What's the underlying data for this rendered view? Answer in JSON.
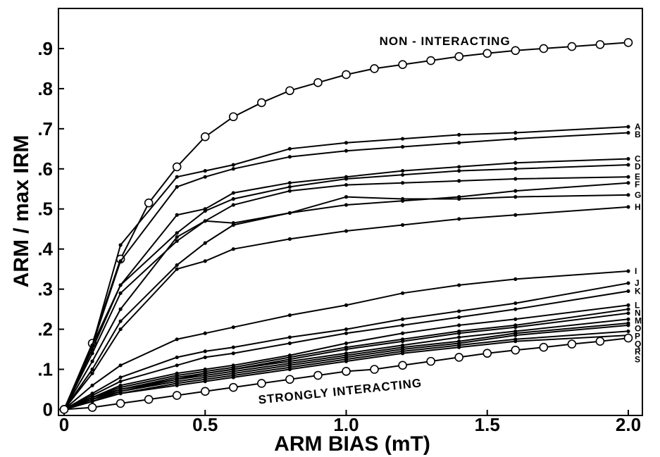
{
  "chart_data": {
    "type": "line",
    "xlabel": "ARM  BIAS (mT)",
    "ylabel": "ARM / max IRM",
    "xlim": [
      -0.02,
      2.05
    ],
    "ylim": [
      -0.015,
      1.0
    ],
    "xticks": [
      0,
      0.5,
      {
        "value": 1.0,
        "label": "1.0"
      },
      1.5,
      {
        "value": 2.0,
        "label": "2.0"
      }
    ],
    "yticks": [
      0,
      {
        "value": 0.1,
        "label": ".1"
      },
      {
        "value": 0.2,
        "label": ".2"
      },
      {
        "value": 0.3,
        "label": ".3"
      },
      {
        "value": 0.4,
        "label": ".4"
      },
      {
        "value": 0.5,
        "label": ".5"
      },
      {
        "value": 0.6,
        "label": ".6"
      },
      {
        "value": 0.7,
        "label": ".7"
      },
      {
        "value": 0.8,
        "label": ".8"
      },
      {
        "value": 0.9,
        "label": ".9"
      }
    ],
    "grid": false,
    "x": [
      0,
      0.1,
      0.2,
      0.4,
      0.5,
      0.6,
      0.8,
      1.0,
      1.2,
      1.4,
      1.6,
      2.0
    ],
    "series": [
      {
        "name": "NON - INTERACTING",
        "color": "#000000",
        "marker": "open-circle",
        "x": [
          0,
          0.1,
          0.2,
          0.3,
          0.4,
          0.5,
          0.6,
          0.7,
          0.8,
          0.9,
          1.0,
          1.1,
          1.2,
          1.3,
          1.4,
          1.5,
          1.6,
          1.7,
          1.8,
          1.9,
          2.0
        ],
        "values": [
          0,
          0.165,
          0.375,
          0.515,
          0.605,
          0.68,
          0.73,
          0.765,
          0.795,
          0.815,
          0.835,
          0.85,
          0.86,
          0.87,
          0.88,
          0.888,
          0.895,
          0.9,
          0.905,
          0.91,
          0.915
        ]
      },
      {
        "name": "A",
        "color": "#000000",
        "marker": "dot",
        "values": [
          0,
          0.16,
          0.41,
          0.58,
          0.595,
          0.61,
          0.65,
          0.665,
          0.675,
          0.685,
          0.69,
          0.705
        ]
      },
      {
        "name": "B",
        "color": "#000000",
        "marker": "dot",
        "values": [
          0,
          0.16,
          0.37,
          0.555,
          0.58,
          0.6,
          0.63,
          0.645,
          0.655,
          0.665,
          0.675,
          0.69
        ]
      },
      {
        "name": "C",
        "color": "#000000",
        "marker": "dot",
        "values": [
          0,
          0.16,
          0.31,
          0.485,
          0.5,
          0.54,
          0.565,
          0.58,
          0.595,
          0.605,
          0.615,
          0.625
        ]
      },
      {
        "name": "D",
        "color": "#000000",
        "marker": "dot",
        "values": [
          0,
          0.15,
          0.31,
          0.44,
          0.495,
          0.525,
          0.555,
          0.575,
          0.585,
          0.595,
          0.6,
          0.61
        ]
      },
      {
        "name": "E",
        "color": "#000000",
        "marker": "dot",
        "values": [
          0,
          0.14,
          0.29,
          0.42,
          0.47,
          0.51,
          0.545,
          0.56,
          0.565,
          0.57,
          0.575,
          0.58
        ]
      },
      {
        "name": "F",
        "color": "#000000",
        "marker": "dot",
        "values": [
          0,
          0.12,
          0.25,
          0.43,
          0.47,
          0.465,
          0.49,
          0.51,
          0.52,
          0.53,
          0.545,
          0.565
        ]
      },
      {
        "name": "G",
        "color": "#000000",
        "marker": "dot",
        "values": [
          0,
          0.1,
          0.22,
          0.36,
          0.415,
          0.46,
          0.49,
          0.53,
          0.525,
          0.525,
          0.53,
          0.535
        ]
      },
      {
        "name": "H",
        "color": "#000000",
        "marker": "dot",
        "values": [
          0,
          0.09,
          0.2,
          0.35,
          0.37,
          0.4,
          0.425,
          0.445,
          0.46,
          0.475,
          0.485,
          0.505
        ]
      },
      {
        "name": "I",
        "color": "#000000",
        "marker": "dot",
        "values": [
          0,
          0.06,
          0.11,
          0.175,
          0.19,
          0.205,
          0.235,
          0.26,
          0.29,
          0.31,
          0.325,
          0.345
        ]
      },
      {
        "name": "J",
        "color": "#000000",
        "marker": "dot",
        "values": [
          0,
          0.04,
          0.08,
          0.13,
          0.145,
          0.155,
          0.18,
          0.2,
          0.225,
          0.245,
          0.265,
          0.315
        ]
      },
      {
        "name": "K",
        "color": "#000000",
        "marker": "dot",
        "values": [
          0,
          0.035,
          0.07,
          0.11,
          0.13,
          0.14,
          0.165,
          0.19,
          0.21,
          0.23,
          0.25,
          0.295
        ]
      },
      {
        "name": "L",
        "color": "#000000",
        "marker": "dot",
        "values": [
          0,
          0.03,
          0.06,
          0.09,
          0.1,
          0.11,
          0.135,
          0.165,
          0.19,
          0.21,
          0.225,
          0.26
        ]
      },
      {
        "name": "N",
        "color": "#000000",
        "marker": "dot",
        "values": [
          0,
          0.03,
          0.055,
          0.085,
          0.095,
          0.105,
          0.13,
          0.155,
          0.175,
          0.195,
          0.21,
          0.25
        ]
      },
      {
        "name": "M",
        "color": "#000000",
        "marker": "dot",
        "values": [
          0,
          0.03,
          0.05,
          0.08,
          0.09,
          0.1,
          0.125,
          0.15,
          0.17,
          0.19,
          0.205,
          0.24
        ]
      },
      {
        "name": "O",
        "color": "#000000",
        "marker": "dot",
        "values": [
          0,
          0.025,
          0.05,
          0.075,
          0.09,
          0.1,
          0.12,
          0.14,
          0.16,
          0.18,
          0.195,
          0.225
        ]
      },
      {
        "name": "P",
        "color": "#000000",
        "marker": "dot",
        "values": [
          0,
          0.025,
          0.045,
          0.075,
          0.085,
          0.095,
          0.115,
          0.135,
          0.155,
          0.17,
          0.19,
          0.215
        ]
      },
      {
        "name": "Q",
        "color": "#000000",
        "marker": "dot",
        "values": [
          0,
          0.02,
          0.045,
          0.07,
          0.08,
          0.09,
          0.11,
          0.13,
          0.15,
          0.165,
          0.185,
          0.21
        ]
      },
      {
        "name": "R",
        "color": "#000000",
        "marker": "dot",
        "values": [
          0,
          0.02,
          0.04,
          0.065,
          0.075,
          0.085,
          0.105,
          0.125,
          0.145,
          0.16,
          0.175,
          0.195
        ]
      },
      {
        "name": "S",
        "color": "#000000",
        "marker": "dot",
        "values": [
          0,
          0.02,
          0.04,
          0.06,
          0.07,
          0.08,
          0.1,
          0.12,
          0.14,
          0.155,
          0.17,
          0.185
        ]
      },
      {
        "name": "STRONGLY  INTERACTING",
        "color": "#000000",
        "marker": "open-circle",
        "x": [
          0,
          0.1,
          0.2,
          0.3,
          0.4,
          0.5,
          0.6,
          0.7,
          0.8,
          0.9,
          1.0,
          1.1,
          1.2,
          1.3,
          1.4,
          1.5,
          1.6,
          1.7,
          1.8,
          1.9,
          2.0
        ],
        "values": [
          0,
          0.005,
          0.015,
          0.025,
          0.035,
          0.045,
          0.055,
          0.065,
          0.075,
          0.085,
          0.095,
          0.1,
          0.11,
          0.12,
          0.13,
          0.14,
          0.148,
          0.155,
          0.163,
          0.17,
          0.178
        ]
      }
    ]
  }
}
